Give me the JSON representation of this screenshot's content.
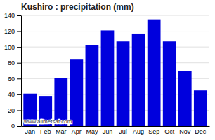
{
  "chart_data": {
    "type": "bar",
    "title": "Kushiro : precipitation (mm)",
    "categories": [
      "Jan",
      "Feb",
      "Mar",
      "Apr",
      "May",
      "Jun",
      "Jul",
      "Aug",
      "Sep",
      "Oct",
      "Nov",
      "Dec"
    ],
    "values": [
      41,
      38,
      61,
      84,
      102,
      121,
      107,
      117,
      135,
      107,
      70,
      45
    ],
    "color": "#0000dd",
    "ylim": [
      0,
      140
    ],
    "yticks": [
      0,
      20,
      40,
      60,
      80,
      100,
      120,
      140
    ],
    "grid": true,
    "annotations": [
      "www.allmetsat.com"
    ]
  }
}
